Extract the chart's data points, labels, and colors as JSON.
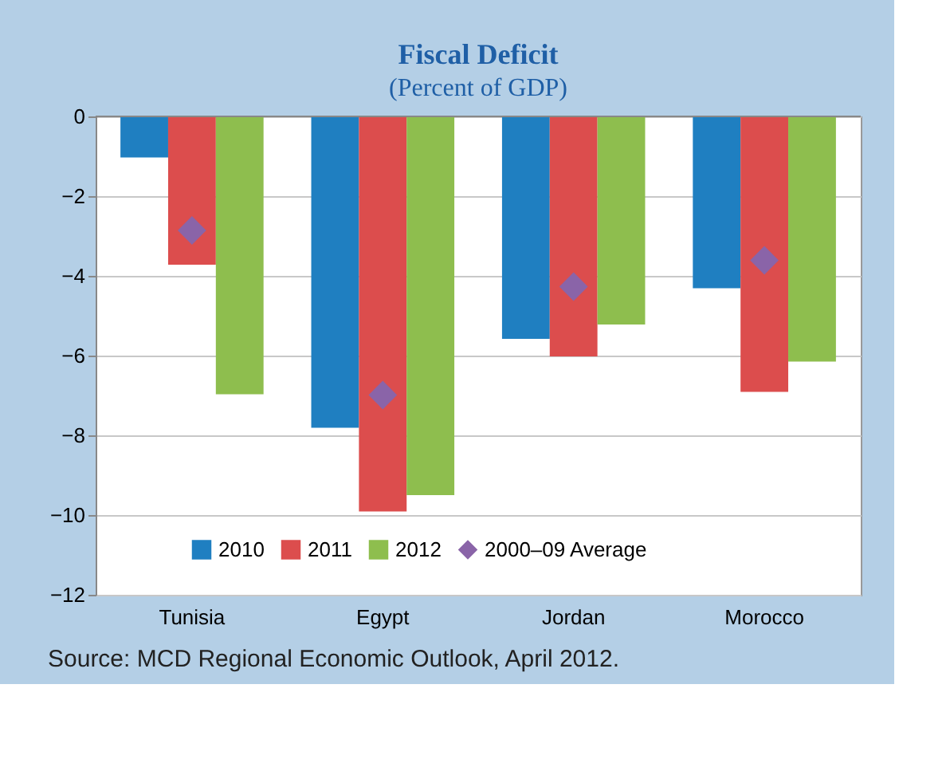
{
  "chart_data": {
    "type": "bar",
    "title": "Fiscal Deficit",
    "subtitle": "(Percent of GDP)",
    "categories": [
      "Tunisia",
      "Egypt",
      "Jordan",
      "Morocco"
    ],
    "series": [
      {
        "name": "2010",
        "color": "#1f7fc1",
        "values": [
          -1.03,
          -7.81,
          -5.58,
          -4.31
        ]
      },
      {
        "name": "2011",
        "color": "#dc4d4d",
        "values": [
          -3.72,
          -9.91,
          -6.02,
          -6.91
        ]
      },
      {
        "name": "2012",
        "color": "#8ebe4e",
        "values": [
          -6.97,
          -9.5,
          -5.22,
          -6.15
        ]
      },
      {
        "name": "2000–09 Average",
        "type": "scatter",
        "marker": "diamond",
        "color": "#8a64a8",
        "x": [
          "Tunisia",
          "Egypt",
          "Jordan",
          "Morocco"
        ],
        "values": [
          -2.86,
          -6.99,
          -4.27,
          -3.61
        ]
      }
    ],
    "ylim": [
      -12,
      0
    ],
    "yticks": [
      0,
      -2,
      -4,
      -6,
      -8,
      -10,
      -12
    ],
    "grid": "y",
    "legend": "bottom",
    "annotations": [
      "Source: MCD Regional Economic Outlook, April 2012."
    ]
  }
}
